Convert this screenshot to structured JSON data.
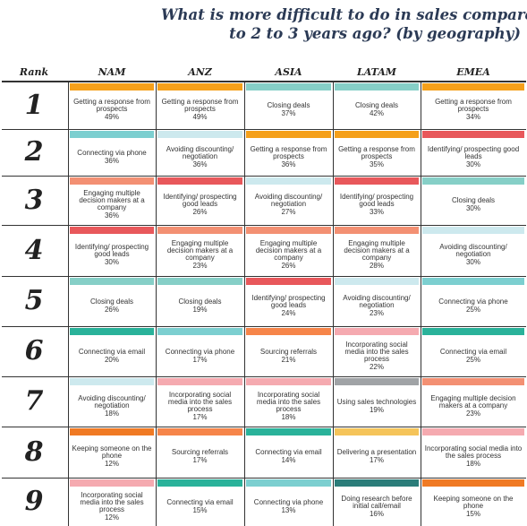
{
  "title_lines": [
    "What is more difficult to do in sales compared",
    "to 2 to 3 years ago? (by geography)"
  ],
  "chart_data": {
    "type": "table",
    "rank_header": "Rank",
    "columns": [
      "NAM",
      "ANZ",
      "ASIA",
      "LATAM",
      "EMEA"
    ],
    "ranks": [
      "1",
      "2",
      "3",
      "4",
      "5",
      "6",
      "7",
      "8",
      "9"
    ],
    "category_colors": {
      "response": "#f5a01a",
      "closing": "#86cfc7",
      "phone": "#7ccfd0",
      "discount": "#cde9ee",
      "identify": "#e8585b",
      "engage": "#f39073",
      "email": "#2ab29a",
      "social": "#f5aab0",
      "referrals": "#f6854a",
      "keeping": "#f07a24",
      "techno": "#a0a3a6",
      "present": "#f5c45a",
      "research": "#2b7d7a"
    },
    "cells": [
      [
        {
          "label": "Getting a response from prospects",
          "pct": "49%",
          "cat": "response"
        },
        {
          "label": "Getting a response from prospects",
          "pct": "49%",
          "cat": "response"
        },
        {
          "label": "Closing deals",
          "pct": "37%",
          "cat": "closing"
        },
        {
          "label": "Closing deals",
          "pct": "42%",
          "cat": "closing"
        },
        {
          "label": "Getting a response from prospects",
          "pct": "34%",
          "cat": "response"
        }
      ],
      [
        {
          "label": "Connecting via phone",
          "pct": "36%",
          "cat": "phone"
        },
        {
          "label": "Avoiding discounting/ negotiation",
          "pct": "36%",
          "cat": "discount"
        },
        {
          "label": "Getting a response from prospects",
          "pct": "36%",
          "cat": "response"
        },
        {
          "label": "Getting a response from prospects",
          "pct": "35%",
          "cat": "response"
        },
        {
          "label": "Identifying/ prospecting good leads",
          "pct": "30%",
          "cat": "identify"
        }
      ],
      [
        {
          "label": "Engaging multiple decision makers at a company",
          "pct": "36%",
          "cat": "engage"
        },
        {
          "label": "Identifying/ prospecting good leads",
          "pct": "26%",
          "cat": "identify"
        },
        {
          "label": "Avoiding discounting/ negotiation",
          "pct": "27%",
          "cat": "discount"
        },
        {
          "label": "Identifying/ prospecting good leads",
          "pct": "33%",
          "cat": "identify"
        },
        {
          "label": "Closing deals",
          "pct": "30%",
          "cat": "closing"
        }
      ],
      [
        {
          "label": "Identifying/ prospecting good leads",
          "pct": "30%",
          "cat": "identify"
        },
        {
          "label": "Engaging multiple decision makers at a company",
          "pct": "23%",
          "cat": "engage"
        },
        {
          "label": "Engaging multiple decision makers at a company",
          "pct": "26%",
          "cat": "engage"
        },
        {
          "label": "Engaging multiple decision makers at a company",
          "pct": "28%",
          "cat": "engage"
        },
        {
          "label": "Avoiding discounting/ negotiation",
          "pct": "30%",
          "cat": "discount"
        }
      ],
      [
        {
          "label": "Closing deals",
          "pct": "26%",
          "cat": "closing"
        },
        {
          "label": "Closing deals",
          "pct": "19%",
          "cat": "closing"
        },
        {
          "label": "Identifying/ prospecting good leads",
          "pct": "24%",
          "cat": "identify"
        },
        {
          "label": "Avoiding discounting/ negotiation",
          "pct": "23%",
          "cat": "discount"
        },
        {
          "label": "Connecting via phone",
          "pct": "25%",
          "cat": "phone"
        }
      ],
      [
        {
          "label": "Connecting via email",
          "pct": "20%",
          "cat": "email"
        },
        {
          "label": "Connecting via phone",
          "pct": "17%",
          "cat": "phone"
        },
        {
          "label": "Sourcing referrals",
          "pct": "21%",
          "cat": "referrals"
        },
        {
          "label": "Incorporating social media into the sales process",
          "pct": "22%",
          "cat": "social"
        },
        {
          "label": "Connecting via email",
          "pct": "25%",
          "cat": "email"
        }
      ],
      [
        {
          "label": "Avoiding discounting/ negotiation",
          "pct": "18%",
          "cat": "discount"
        },
        {
          "label": "Incorporating social media into the sales process",
          "pct": "17%",
          "cat": "social"
        },
        {
          "label": "Incorporating social media into the sales process",
          "pct": "18%",
          "cat": "social"
        },
        {
          "label": "Using sales technologies",
          "pct": "19%",
          "cat": "techno"
        },
        {
          "label": "Engaging multiple decision makers at a company",
          "pct": "23%",
          "cat": "engage"
        }
      ],
      [
        {
          "label": "Keeping someone on the phone",
          "pct": "12%",
          "cat": "keeping"
        },
        {
          "label": "Sourcing referrals",
          "pct": "17%",
          "cat": "referrals"
        },
        {
          "label": "Connecting via email",
          "pct": "14%",
          "cat": "email"
        },
        {
          "label": "Delivering a presentation",
          "pct": "17%",
          "cat": "present"
        },
        {
          "label": "Incorporating social media into the sales process",
          "pct": "18%",
          "cat": "social"
        }
      ],
      [
        {
          "label": "Incorporating social media into the sales process",
          "pct": "12%",
          "cat": "social"
        },
        {
          "label": "Connecting via email",
          "pct": "15%",
          "cat": "email"
        },
        {
          "label": "Connecting via phone",
          "pct": "13%",
          "cat": "phone"
        },
        {
          "label": "Doing research before initial call/email",
          "pct": "16%",
          "cat": "research"
        },
        {
          "label": "Keeping someone on the phone",
          "pct": "15%",
          "cat": "keeping"
        }
      ]
    ]
  }
}
